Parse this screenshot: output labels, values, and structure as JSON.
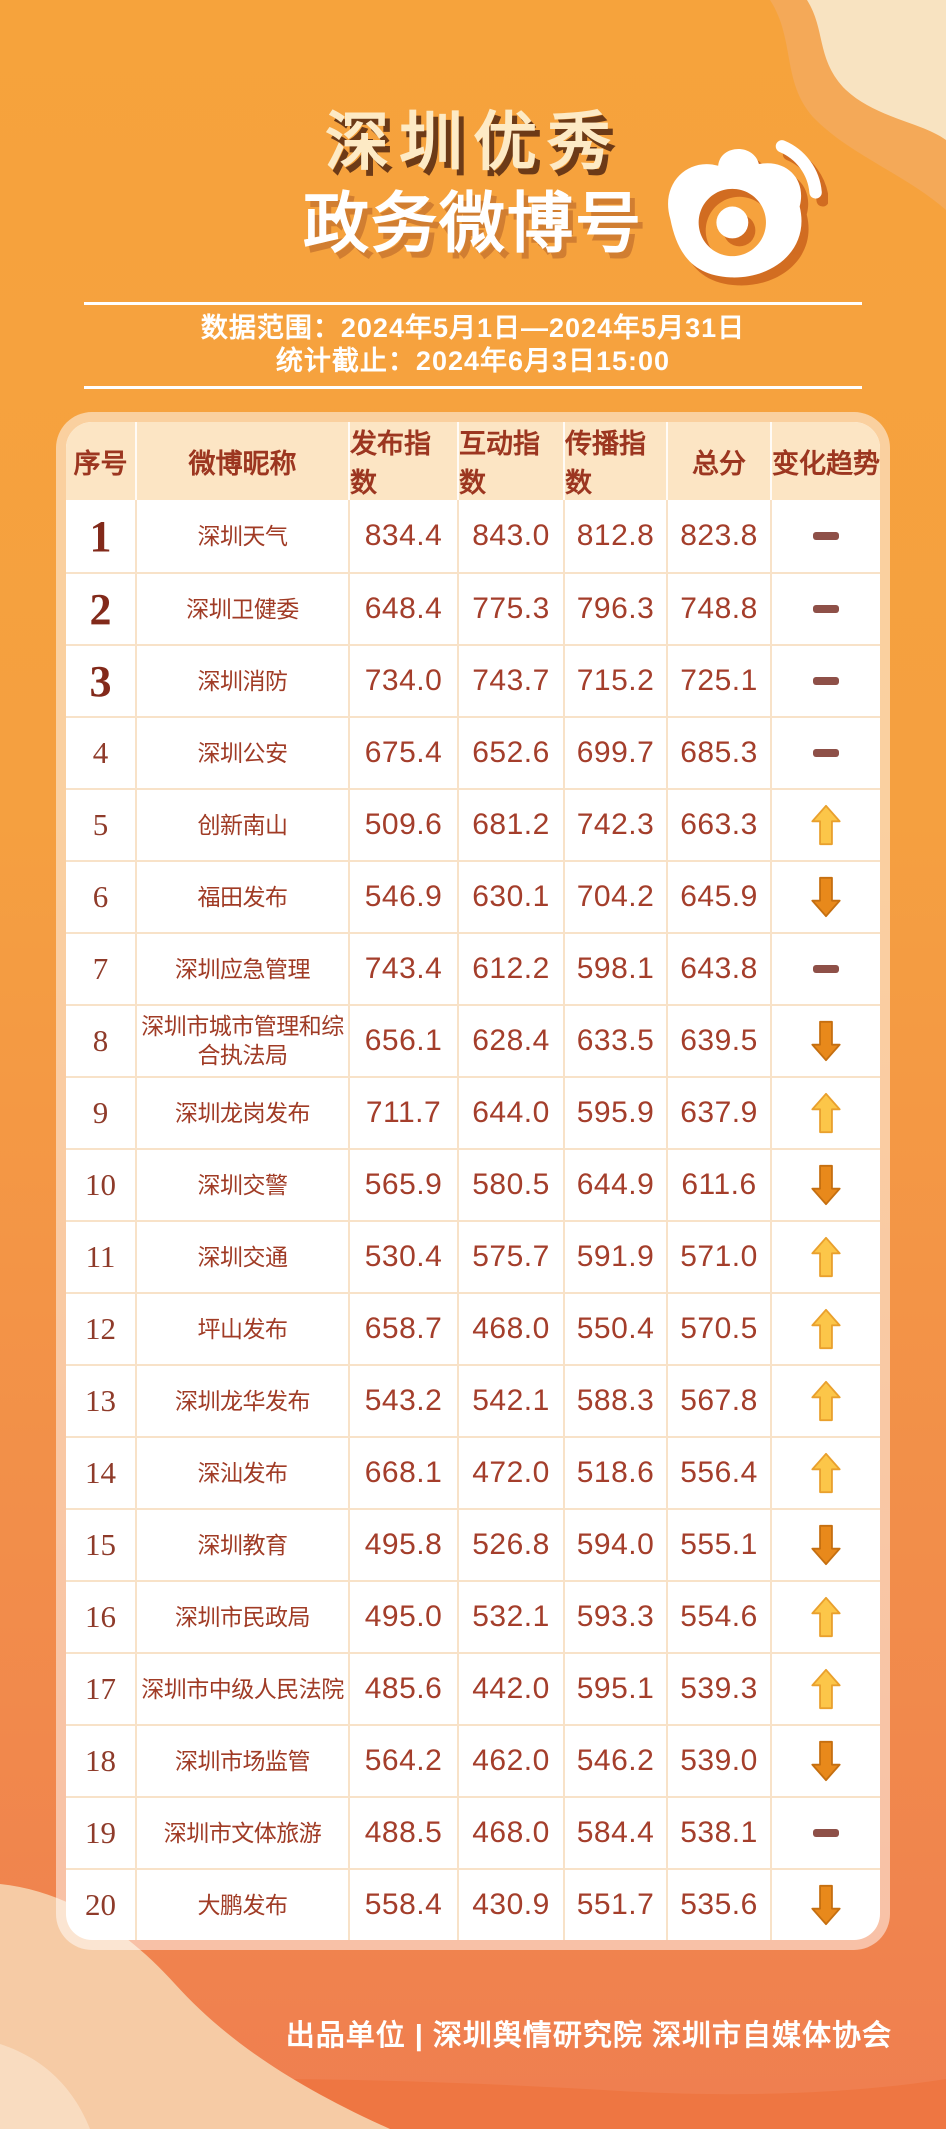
{
  "page": {
    "title_line1": "深圳优秀",
    "title_line2": "政务微博号",
    "banner": {
      "line1": "数据范围：2024年5月1日—2024年5月31日",
      "line2": "统计截止：2024年6月3日15:00"
    },
    "footer": "出品单位 | 深圳舆情研究院 深圳市自媒体协会"
  },
  "icons": {
    "logo": "weibo-logo-icon",
    "trend_up": "up-arrow-icon",
    "trend_down": "down-arrow-icon",
    "trend_flat": "flat-dash-icon"
  },
  "colors": {
    "bg_top": "#F6A33C",
    "bg_bottom": "#EF7E50",
    "header_bg": "#FCE5C4",
    "header_text": "#9C3620",
    "data_text": "#A43E2B",
    "rank_top3_text": "#82291A",
    "trend_up": "#FCC649",
    "trend_up_stroke": "#E9A02D",
    "trend_down": "#E8891B",
    "trend_down_stroke": "#C56F10",
    "trend_flat": "#8E5048",
    "title_cream": "#FDEAC5",
    "banner_text": "#FFFFFF"
  },
  "table": {
    "headers": [
      "序号",
      "微博昵称",
      "发布指数",
      "互动指数",
      "传播指数",
      "总分",
      "变化趋势"
    ],
    "rows": [
      {
        "rank": "1",
        "name": "深圳天气",
        "publish": "834.4",
        "interact": "843.0",
        "spread": "812.8",
        "total": "823.8",
        "trend": "flat"
      },
      {
        "rank": "2",
        "name": "深圳卫健委",
        "publish": "648.4",
        "interact": "775.3",
        "spread": "796.3",
        "total": "748.8",
        "trend": "flat"
      },
      {
        "rank": "3",
        "name": "深圳消防",
        "publish": "734.0",
        "interact": "743.7",
        "spread": "715.2",
        "total": "725.1",
        "trend": "flat"
      },
      {
        "rank": "4",
        "name": "深圳公安",
        "publish": "675.4",
        "interact": "652.6",
        "spread": "699.7",
        "total": "685.3",
        "trend": "flat"
      },
      {
        "rank": "5",
        "name": "创新南山",
        "publish": "509.6",
        "interact": "681.2",
        "spread": "742.3",
        "total": "663.3",
        "trend": "up"
      },
      {
        "rank": "6",
        "name": "福田发布",
        "publish": "546.9",
        "interact": "630.1",
        "spread": "704.2",
        "total": "645.9",
        "trend": "down"
      },
      {
        "rank": "7",
        "name": "深圳应急管理",
        "publish": "743.4",
        "interact": "612.2",
        "spread": "598.1",
        "total": "643.8",
        "trend": "flat"
      },
      {
        "rank": "8",
        "name": "深圳市城市管理和综合执法局",
        "publish": "656.1",
        "interact": "628.4",
        "spread": "633.5",
        "total": "639.5",
        "trend": "down"
      },
      {
        "rank": "9",
        "name": "深圳龙岗发布",
        "publish": "711.7",
        "interact": "644.0",
        "spread": "595.9",
        "total": "637.9",
        "trend": "up"
      },
      {
        "rank": "10",
        "name": "深圳交警",
        "publish": "565.9",
        "interact": "580.5",
        "spread": "644.9",
        "total": "611.6",
        "trend": "down"
      },
      {
        "rank": "11",
        "name": "深圳交通",
        "publish": "530.4",
        "interact": "575.7",
        "spread": "591.9",
        "total": "571.0",
        "trend": "up"
      },
      {
        "rank": "12",
        "name": "坪山发布",
        "publish": "658.7",
        "interact": "468.0",
        "spread": "550.4",
        "total": "570.5",
        "trend": "up"
      },
      {
        "rank": "13",
        "name": "深圳龙华发布",
        "publish": "543.2",
        "interact": "542.1",
        "spread": "588.3",
        "total": "567.8",
        "trend": "up"
      },
      {
        "rank": "14",
        "name": "深汕发布",
        "publish": "668.1",
        "interact": "472.0",
        "spread": "518.6",
        "total": "556.4",
        "trend": "up"
      },
      {
        "rank": "15",
        "name": "深圳教育",
        "publish": "495.8",
        "interact": "526.8",
        "spread": "594.0",
        "total": "555.1",
        "trend": "down"
      },
      {
        "rank": "16",
        "name": "深圳市民政局",
        "publish": "495.0",
        "interact": "532.1",
        "spread": "593.3",
        "total": "554.6",
        "trend": "up"
      },
      {
        "rank": "17",
        "name": "深圳市中级人民法院",
        "publish": "485.6",
        "interact": "442.0",
        "spread": "595.1",
        "total": "539.3",
        "trend": "up"
      },
      {
        "rank": "18",
        "name": "深圳市场监管",
        "publish": "564.2",
        "interact": "462.0",
        "spread": "546.2",
        "total": "539.0",
        "trend": "down"
      },
      {
        "rank": "19",
        "name": "深圳市文体旅游",
        "publish": "488.5",
        "interact": "468.0",
        "spread": "584.4",
        "total": "538.1",
        "trend": "flat"
      },
      {
        "rank": "20",
        "name": "大鹏发布",
        "publish": "558.4",
        "interact": "430.9",
        "spread": "551.7",
        "total": "535.6",
        "trend": "down"
      }
    ]
  },
  "chart_data": {
    "type": "table",
    "title": "深圳优秀政务微博号",
    "subtitle": "数据范围：2024年5月1日—2024年5月31日；统计截止：2024年6月3日15:00",
    "columns": [
      "序号",
      "微博昵称",
      "发布指数",
      "互动指数",
      "传播指数",
      "总分",
      "变化趋势"
    ],
    "rows": [
      [
        1,
        "深圳天气",
        834.4,
        843.0,
        812.8,
        823.8,
        "flat"
      ],
      [
        2,
        "深圳卫健委",
        648.4,
        775.3,
        796.3,
        748.8,
        "flat"
      ],
      [
        3,
        "深圳消防",
        734.0,
        743.7,
        715.2,
        725.1,
        "flat"
      ],
      [
        4,
        "深圳公安",
        675.4,
        652.6,
        699.7,
        685.3,
        "flat"
      ],
      [
        5,
        "创新南山",
        509.6,
        681.2,
        742.3,
        663.3,
        "up"
      ],
      [
        6,
        "福田发布",
        546.9,
        630.1,
        704.2,
        645.9,
        "down"
      ],
      [
        7,
        "深圳应急管理",
        743.4,
        612.2,
        598.1,
        643.8,
        "flat"
      ],
      [
        8,
        "深圳市城市管理和综合执法局",
        656.1,
        628.4,
        633.5,
        639.5,
        "down"
      ],
      [
        9,
        "深圳龙岗发布",
        711.7,
        644.0,
        595.9,
        637.9,
        "up"
      ],
      [
        10,
        "深圳交警",
        565.9,
        580.5,
        644.9,
        611.6,
        "down"
      ],
      [
        11,
        "深圳交通",
        530.4,
        575.7,
        591.9,
        571.0,
        "up"
      ],
      [
        12,
        "坪山发布",
        658.7,
        468.0,
        550.4,
        570.5,
        "up"
      ],
      [
        13,
        "深圳龙华发布",
        543.2,
        542.1,
        588.3,
        567.8,
        "up"
      ],
      [
        14,
        "深汕发布",
        668.1,
        472.0,
        518.6,
        556.4,
        "up"
      ],
      [
        15,
        "深圳教育",
        495.8,
        526.8,
        594.0,
        555.1,
        "down"
      ],
      [
        16,
        "深圳市民政局",
        495.0,
        532.1,
        593.3,
        554.6,
        "up"
      ],
      [
        17,
        "深圳市中级人民法院",
        485.6,
        442.0,
        595.1,
        539.3,
        "up"
      ],
      [
        18,
        "深圳市场监管",
        564.2,
        462.0,
        546.2,
        539.0,
        "down"
      ],
      [
        19,
        "深圳市文体旅游",
        488.5,
        468.0,
        584.4,
        538.1,
        "flat"
      ],
      [
        20,
        "大鹏发布",
        558.4,
        430.9,
        551.7,
        535.6,
        "down"
      ]
    ]
  }
}
